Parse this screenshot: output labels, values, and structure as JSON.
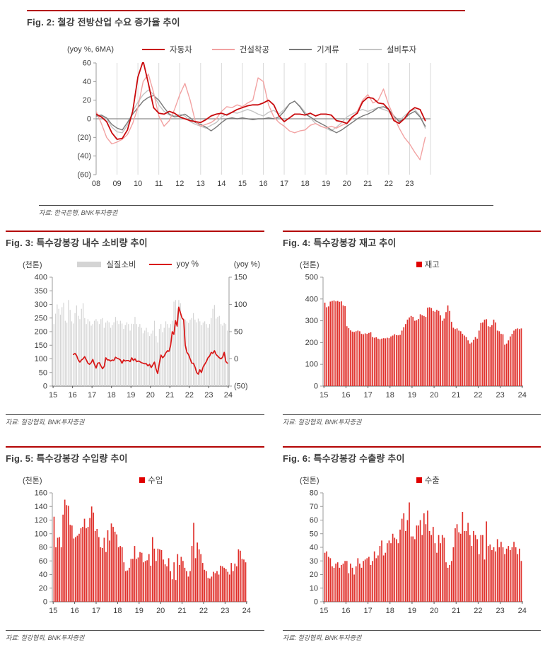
{
  "page": {
    "background": "#ffffff",
    "accent_rule_color": "#b40404"
  },
  "chart_data": [
    {
      "id": "fig2",
      "type": "line",
      "title": "Fig. 2: 철강 전방산업 수요 증가율 추이",
      "unit_left": "(yoy %, 6MA)",
      "source": "자료: 한국은행, BNK투자증권",
      "xlim": [
        2008,
        2024
      ],
      "xticks_from": 2008,
      "xtick_labels": [
        "08",
        "09",
        "10",
        "11",
        "12",
        "13",
        "14",
        "15",
        "16",
        "17",
        "18",
        "19",
        "20",
        "21",
        "22",
        "23"
      ],
      "yaxis_left": {
        "lim": [
          -60,
          60
        ],
        "step": 20,
        "labels": [
          "60",
          "40",
          "20",
          "0",
          "(20)",
          "(40)",
          "(60)"
        ]
      },
      "grid": "vertical-yearly",
      "legend_position": "top",
      "legend": [
        {
          "label": "자동차",
          "color": "#c9090c",
          "swatch": "line"
        },
        {
          "label": "건설착공",
          "color": "#f2a2a2",
          "swatch": "line"
        },
        {
          "label": "기계류",
          "color": "#7a7a7a",
          "swatch": "line"
        },
        {
          "label": "설비투자",
          "color": "#c4c4c4",
          "swatch": "line"
        }
      ],
      "series": [
        {
          "name": "설비투자",
          "color": "#c4c4c4",
          "width": 1.4,
          "axis": "left",
          "x_start": 2008,
          "x_step": 0.25,
          "values": [
            2,
            3,
            0,
            -9,
            -14,
            -15,
            -7,
            8,
            18,
            26,
            31,
            26,
            15,
            8,
            4,
            3,
            5,
            3,
            -3,
            -6,
            -8,
            -10,
            -7,
            -4,
            2,
            5,
            7,
            6,
            8,
            10,
            8,
            5,
            3,
            7,
            9,
            5,
            10,
            16,
            19,
            14,
            7,
            1,
            -5,
            -8,
            -10,
            -13,
            -9,
            -4,
            2,
            5,
            8,
            10,
            8,
            10,
            12,
            10,
            8,
            2,
            -2,
            3,
            8,
            10,
            3,
            -10
          ]
        },
        {
          "name": "기계류",
          "color": "#7a7a7a",
          "width": 1.4,
          "axis": "left",
          "x_start": 2008,
          "x_step": 0.25,
          "values": [
            3,
            4,
            1,
            -6,
            -10,
            -12,
            -4,
            5,
            12,
            19,
            23,
            25,
            20,
            12,
            5,
            2,
            3,
            5,
            1,
            -4,
            -6,
            -9,
            -13,
            -9,
            -4,
            0,
            1,
            0,
            1,
            0,
            -1,
            0,
            0,
            1,
            0,
            2,
            8,
            16,
            19,
            13,
            5,
            2,
            -2,
            -5,
            -8,
            -12,
            -15,
            -12,
            -8,
            -4,
            0,
            3,
            5,
            8,
            12,
            13,
            10,
            3,
            -3,
            0,
            5,
            8,
            2,
            -8
          ]
        },
        {
          "name": "건설착공",
          "color": "#f2a2a2",
          "width": 1.4,
          "axis": "left",
          "x_start": 2008,
          "x_step": 0.25,
          "values": [
            8,
            -5,
            -20,
            -27,
            -25,
            -22,
            -17,
            -5,
            12,
            40,
            48,
            28,
            3,
            -8,
            -2,
            10,
            26,
            38,
            20,
            -3,
            -8,
            -6,
            -4,
            0,
            8,
            13,
            12,
            15,
            13,
            17,
            20,
            44,
            40,
            15,
            2,
            -4,
            -8,
            -13,
            -15,
            -13,
            -12,
            -7,
            -5,
            -8,
            -10,
            -8,
            -10,
            -7,
            -5,
            0,
            8,
            20,
            26,
            17,
            20,
            32,
            15,
            2,
            -10,
            -20,
            -27,
            -36,
            -44,
            -20
          ]
        },
        {
          "name": "자동차",
          "color": "#c9090c",
          "width": 1.8,
          "axis": "left",
          "x_start": 2008,
          "x_step": 0.25,
          "values": [
            5,
            2,
            -3,
            -15,
            -22,
            -21,
            -12,
            8,
            45,
            62,
            38,
            12,
            6,
            5,
            8,
            6,
            2,
            0,
            -2,
            -3,
            -4,
            -1,
            3,
            5,
            6,
            4,
            7,
            10,
            12,
            14,
            15,
            15,
            17,
            20,
            15,
            3,
            -3,
            1,
            5,
            5,
            4,
            6,
            3,
            5,
            5,
            4,
            -2,
            -3,
            -5,
            2,
            6,
            18,
            23,
            22,
            17,
            16,
            10,
            -2,
            -5,
            0,
            8,
            12,
            10,
            -2
          ]
        }
      ]
    },
    {
      "id": "fig3",
      "type": "bar+line",
      "title": "Fig. 3: 특수강봉강 내수 소비량 추이",
      "unit_left": "(천톤)",
      "unit_right": "(yoy %)",
      "source": "자료: 철강협회, BNK투자증권",
      "xlim": [
        2014.96,
        2024.04
      ],
      "xticks_from": 2015,
      "xtick_labels": [
        "15",
        "16",
        "17",
        "18",
        "19",
        "20",
        "21",
        "22",
        "23",
        "24"
      ],
      "yaxis_left": {
        "lim": [
          0,
          400
        ],
        "step": 50,
        "labels": [
          "400",
          "350",
          "300",
          "250",
          "200",
          "150",
          "100",
          "50",
          "0"
        ]
      },
      "yaxis_right": {
        "lim": [
          -50,
          150
        ],
        "step": 50,
        "labels": [
          "150",
          "100",
          "50",
          "0",
          "(50)"
        ]
      },
      "legend": [
        {
          "label": "실질소비",
          "color": "#d4d4d4",
          "swatch": "bar"
        },
        {
          "label": "yoy %",
          "color": "#d91515",
          "swatch": "line"
        }
      ],
      "bars": {
        "name": "실질소비",
        "color": "#d4d4d4",
        "bar_width": 1.2,
        "x_start": 2015,
        "values": [
          228,
          266,
          300,
          284,
          262,
          290,
          306,
          240,
          233,
          316,
          280,
          238,
          230,
          268,
          296,
          258,
          246,
          284,
          304,
          250,
          228,
          246,
          238,
          222,
          228,
          240,
          246,
          238,
          228,
          246,
          250,
          214,
          233,
          240,
          234,
          214,
          224,
          234,
          254,
          240,
          228,
          240,
          230,
          210,
          224,
          234,
          228,
          204,
          229,
          228,
          254,
          228,
          218,
          228,
          214,
          194,
          204,
          214,
          198,
          184,
          193,
          204,
          240,
          184,
          160,
          210,
          228,
          198,
          214,
          238,
          228,
          214,
          228,
          240,
          310,
          316,
          288,
          316,
          304,
          254,
          248,
          244,
          238,
          232,
          244,
          250,
          268,
          244,
          234,
          248,
          238,
          224,
          233,
          238,
          228,
          214,
          228,
          250,
          284,
          298,
          248,
          254,
          258,
          228,
          222,
          232,
          228,
          204
        ]
      },
      "series": [
        {
          "name": "yoy %",
          "color": "#d91515",
          "width": 1.7,
          "axis": "right",
          "x_start": 2016,
          "values": [
            8,
            10,
            6,
            -2,
            -6,
            -2,
            0,
            4,
            -2,
            -8,
            -10,
            -7,
            -1,
            -10,
            -17,
            -8,
            -7,
            -13,
            -18,
            -14,
            2,
            -2,
            -2,
            -4,
            -2,
            -3,
            3,
            1,
            0,
            -2,
            -8,
            -2,
            -4,
            -3,
            -3,
            -5,
            2,
            -3,
            0,
            -5,
            -4,
            -5,
            -7,
            -8,
            -9,
            -9,
            -13,
            -10,
            -16,
            -11,
            -6,
            -19,
            -27,
            -8,
            7,
            2,
            5,
            11,
            15,
            14,
            25,
            50,
            45,
            70,
            60,
            95,
            85,
            75,
            72,
            25,
            12,
            8,
            0,
            -8,
            -8,
            -15,
            -25,
            -28,
            -20,
            -25,
            -15,
            -10,
            -5,
            2,
            5,
            12,
            10,
            15,
            8,
            5,
            2,
            0,
            3,
            12,
            -5,
            -8
          ]
        }
      ]
    },
    {
      "id": "fig4",
      "type": "bar",
      "title": "Fig. 4: 특수강봉강 재고 추이",
      "unit_left": "(천톤)",
      "source": "자료: 철강협회, BNK투자증권",
      "xlim": [
        2014.96,
        2024.04
      ],
      "xticks_from": 2015,
      "xtick_labels": [
        "15",
        "16",
        "17",
        "18",
        "19",
        "20",
        "21",
        "22",
        "23",
        "24"
      ],
      "yaxis_left": {
        "lim": [
          0,
          500
        ],
        "step": 100,
        "labels": [
          "500",
          "400",
          "300",
          "200",
          "100",
          "0"
        ]
      },
      "legend": [
        {
          "label": "재고",
          "color": "#e00000",
          "swatch": "square"
        }
      ],
      "bars": {
        "name": "재고",
        "color": "#e0302b",
        "bar_width": 1.7,
        "x_start": 2015,
        "values": [
          383,
          362,
          366,
          388,
          391,
          393,
          389,
          391,
          387,
          389,
          370,
          367,
          275,
          266,
          256,
          250,
          248,
          252,
          255,
          252,
          240,
          238,
          242,
          240,
          244,
          247,
          225,
          222,
          224,
          218,
          215,
          218,
          220,
          219,
          222,
          220,
          228,
          232,
          238,
          234,
          233,
          235,
          255,
          270,
          285,
          305,
          315,
          322,
          318,
          300,
          302,
          308,
          330,
          325,
          322,
          318,
          360,
          362,
          358,
          345,
          342,
          350,
          345,
          325,
          300,
          310,
          340,
          370,
          345,
          295,
          268,
          262,
          265,
          255,
          252,
          240,
          232,
          225,
          210,
          195,
          200,
          212,
          225,
          218,
          255,
          290,
          292,
          305,
          307,
          275,
          272,
          280,
          305,
          292,
          255,
          252,
          240,
          238,
          190,
          195,
          210,
          228,
          240,
          255,
          262,
          265,
          262,
          265
        ]
      }
    },
    {
      "id": "fig5",
      "type": "bar",
      "title": "Fig. 5: 특수강봉강 수입량 추이",
      "unit_left": "(천톤)",
      "source": "자료: 철강협회, BNK투자증권",
      "xlim": [
        2014.96,
        2024.04
      ],
      "xticks_from": 2015,
      "xtick_labels": [
        "15",
        "16",
        "17",
        "18",
        "19",
        "20",
        "21",
        "22",
        "23",
        "24"
      ],
      "yaxis_left": {
        "lim": [
          0,
          160
        ],
        "step": 20,
        "labels": [
          "160",
          "140",
          "120",
          "100",
          "80",
          "60",
          "40",
          "20",
          "0"
        ]
      },
      "legend": [
        {
          "label": "수입",
          "color": "#e00000",
          "swatch": "square"
        }
      ],
      "bars": {
        "name": "수입",
        "color": "#e0302b",
        "bar_width": 1.7,
        "x_start": 2015,
        "values": [
          125,
          80,
          94,
          95,
          80,
          128,
          150,
          142,
          141,
          113,
          112,
          93,
          95,
          97,
          100,
          108,
          110,
          122,
          108,
          110,
          123,
          140,
          131,
          104,
          107,
          95,
          80,
          79,
          94,
          73,
          105,
          90,
          115,
          110,
          103,
          99,
          80,
          82,
          80,
          58,
          45,
          46,
          50,
          63,
          63,
          82,
          63,
          65,
          73,
          72,
          58,
          60,
          61,
          70,
          53,
          95,
          78,
          60,
          78,
          77,
          76,
          62,
          55,
          52,
          64,
          45,
          33,
          58,
          32,
          70,
          54,
          66,
          60,
          50,
          45,
          37,
          45,
          82,
          116,
          64,
          87,
          77,
          70,
          57,
          47,
          45,
          35,
          34,
          37,
          44,
          42,
          45,
          40,
          53,
          52,
          50,
          48,
          44,
          40,
          57,
          45,
          56,
          52,
          77,
          75,
          63,
          62,
          58
        ]
      }
    },
    {
      "id": "fig6",
      "type": "bar",
      "title": "Fig. 6: 특수강봉강 수출량 추이",
      "unit_left": "(천톤)",
      "source": "자료: 철강협회, BNK투자증권",
      "xlim": [
        2014.96,
        2024.04
      ],
      "xticks_from": 2015,
      "xtick_labels": [
        "15",
        "16",
        "17",
        "18",
        "19",
        "20",
        "21",
        "22",
        "23",
        "24"
      ],
      "yaxis_left": {
        "lim": [
          0,
          80
        ],
        "step": 10,
        "labels": [
          "80",
          "70",
          "60",
          "50",
          "40",
          "30",
          "20",
          "10",
          "0"
        ]
      },
      "legend": [
        {
          "label": "수출",
          "color": "#e00000",
          "swatch": "square"
        }
      ],
      "bars": {
        "name": "수출",
        "color": "#e0302b",
        "bar_width": 1.7,
        "x_start": 2015,
        "values": [
          36,
          37,
          33,
          32,
          26,
          25,
          28,
          29,
          25,
          27,
          28,
          30,
          30,
          21,
          28,
          25,
          20,
          26,
          32,
          28,
          25,
          30,
          31,
          32,
          33,
          27,
          30,
          37,
          32,
          34,
          41,
          45,
          34,
          36,
          43,
          45,
          43,
          50,
          47,
          46,
          43,
          53,
          61,
          65,
          52,
          60,
          73,
          48,
          48,
          46,
          56,
          56,
          60,
          49,
          65,
          57,
          67,
          52,
          49,
          55,
          43,
          36,
          49,
          43,
          49,
          47,
          29,
          25,
          27,
          30,
          40,
          54,
          57,
          51,
          50,
          66,
          52,
          52,
          58,
          49,
          41,
          52,
          49,
          46,
          35,
          49,
          49,
          31,
          59,
          41,
          42,
          38,
          40,
          37,
          46,
          40,
          44,
          40,
          35,
          39,
          41,
          38,
          40,
          44,
          40,
          35,
          39,
          30
        ]
      }
    }
  ]
}
